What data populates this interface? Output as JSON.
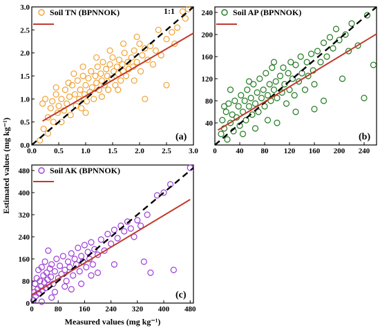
{
  "figure": {
    "ylabel": "Estimated values  (mg kg⁻¹)",
    "xlabel": "Measured values  (mg kg⁻¹)"
  },
  "colors": {
    "one_to_one": "#000000",
    "fit": "#c0392b",
    "tn": "#f0a030",
    "ap": "#1f7a1f",
    "ak": "#9b3dd6"
  },
  "chart_data": [
    {
      "type": "scatter",
      "panel_label": "(a)",
      "legend_points": "Soil TN (BPNNOK)",
      "one_to_one_label": "1:1",
      "xlim": [
        0,
        3.0
      ],
      "ylim": [
        0,
        3.0
      ],
      "xticks": [
        "0.0",
        "0.5",
        "1.0",
        "1.5",
        "2.0",
        "2.5",
        "3.0"
      ],
      "yticks": [
        "0.0",
        "0.5",
        "1.0",
        "1.5",
        "2.0",
        "2.5",
        "3.0"
      ],
      "fit_line": [
        [
          0.2,
          0.52
        ],
        [
          3.0,
          2.43
        ]
      ],
      "one_to_one_line": [
        [
          0,
          0
        ],
        [
          3.0,
          3.0
        ]
      ],
      "legend_position": "top-left",
      "points": [
        [
          0.15,
          0.1
        ],
        [
          0.2,
          0.9
        ],
        [
          0.22,
          0.35
        ],
        [
          0.25,
          1.0
        ],
        [
          0.3,
          0.6
        ],
        [
          0.35,
          0.8
        ],
        [
          0.38,
          0.95
        ],
        [
          0.4,
          0.5
        ],
        [
          0.45,
          1.1
        ],
        [
          0.48,
          0.7
        ],
        [
          0.5,
          0.85
        ],
        [
          0.55,
          1.0
        ],
        [
          0.6,
          0.75
        ],
        [
          0.62,
          1.2
        ],
        [
          0.65,
          0.9
        ],
        [
          0.7,
          1.05
        ],
        [
          0.72,
          0.65
        ],
        [
          0.75,
          1.3
        ],
        [
          0.8,
          1.1
        ],
        [
          0.82,
          0.85
        ],
        [
          0.85,
          1.4
        ],
        [
          0.88,
          1.0
        ],
        [
          0.9,
          1.2
        ],
        [
          0.92,
          0.8
        ],
        [
          0.95,
          1.5
        ],
        [
          0.98,
          1.1
        ],
        [
          1.0,
          1.3
        ],
        [
          1.02,
          0.95
        ],
        [
          1.05,
          1.45
        ],
        [
          1.08,
          1.15
        ],
        [
          1.1,
          1.6
        ],
        [
          1.12,
          1.25
        ],
        [
          1.15,
          1.0
        ],
        [
          1.18,
          1.5
        ],
        [
          1.2,
          1.35
        ],
        [
          1.22,
          1.7
        ],
        [
          1.25,
          1.2
        ],
        [
          1.28,
          1.55
        ],
        [
          1.3,
          1.4
        ],
        [
          1.32,
          1.8
        ],
        [
          1.35,
          1.3
        ],
        [
          1.38,
          1.65
        ],
        [
          1.4,
          1.5
        ],
        [
          1.42,
          1.2
        ],
        [
          1.45,
          1.75
        ],
        [
          1.48,
          1.45
        ],
        [
          1.5,
          1.9
        ],
        [
          1.52,
          1.6
        ],
        [
          1.55,
          1.3
        ],
        [
          1.58,
          1.7
        ],
        [
          1.6,
          1.55
        ],
        [
          1.62,
          1.85
        ],
        [
          1.65,
          1.4
        ],
        [
          1.68,
          1.75
        ],
        [
          1.7,
          1.6
        ],
        [
          1.72,
          2.0
        ],
        [
          1.75,
          1.5
        ],
        [
          1.78,
          1.8
        ],
        [
          1.8,
          1.65
        ],
        [
          1.85,
          1.9
        ],
        [
          1.88,
          1.7
        ],
        [
          1.9,
          2.05
        ],
        [
          1.95,
          1.8
        ],
        [
          2.0,
          2.2
        ],
        [
          2.02,
          1.6
        ],
        [
          2.05,
          1.95
        ],
        [
          2.1,
          2.1
        ],
        [
          2.15,
          1.85
        ],
        [
          2.2,
          2.15
        ],
        [
          2.3,
          2.05
        ],
        [
          2.4,
          1.95
        ],
        [
          2.5,
          2.3
        ],
        [
          2.6,
          2.45
        ],
        [
          2.65,
          2.2
        ],
        [
          2.7,
          2.55
        ],
        [
          2.8,
          2.9
        ],
        [
          2.85,
          2.75
        ],
        [
          2.9,
          2.95
        ],
        [
          2.5,
          1.3
        ],
        [
          2.1,
          1.0
        ],
        [
          0.3,
          0.25
        ],
        [
          0.55,
          0.5
        ],
        [
          0.78,
          1.55
        ],
        [
          1.0,
          0.7
        ],
        [
          1.3,
          1.05
        ],
        [
          1.6,
          1.2
        ],
        [
          1.9,
          1.4
        ],
        [
          2.25,
          1.75
        ],
        [
          0.45,
          1.25
        ],
        [
          0.68,
          1.35
        ],
        [
          0.95,
          1.7
        ],
        [
          1.2,
          1.9
        ],
        [
          1.45,
          2.05
        ],
        [
          1.7,
          2.2
        ],
        [
          1.95,
          2.35
        ],
        [
          2.35,
          2.5
        ]
      ]
    },
    {
      "type": "scatter",
      "panel_label": "(b)",
      "legend_points": "Soil AP (BPNNOK)",
      "xlim": [
        0,
        260
      ],
      "ylim": [
        0,
        250
      ],
      "xticks": [
        "0",
        "40",
        "80",
        "120",
        "160",
        "200",
        "240"
      ],
      "yticks": [
        "40",
        "80",
        "120",
        "160",
        "200",
        "240"
      ],
      "fit_line": [
        [
          5,
          27
        ],
        [
          260,
          201
        ]
      ],
      "one_to_one_line": [
        [
          0,
          0
        ],
        [
          260,
          260
        ]
      ],
      "legend_position": "top-left",
      "points": [
        [
          10,
          20
        ],
        [
          12,
          45
        ],
        [
          15,
          30
        ],
        [
          18,
          60
        ],
        [
          20,
          10
        ],
        [
          22,
          75
        ],
        [
          25,
          40
        ],
        [
          28,
          55
        ],
        [
          30,
          25
        ],
        [
          32,
          80
        ],
        [
          35,
          50
        ],
        [
          38,
          70
        ],
        [
          40,
          35
        ],
        [
          42,
          90
        ],
        [
          45,
          60
        ],
        [
          48,
          80
        ],
        [
          50,
          45
        ],
        [
          52,
          100
        ],
        [
          55,
          70
        ],
        [
          58,
          85
        ],
        [
          60,
          55
        ],
        [
          62,
          110
        ],
        [
          65,
          75
        ],
        [
          68,
          95
        ],
        [
          70,
          60
        ],
        [
          72,
          120
        ],
        [
          75,
          85
        ],
        [
          78,
          100
        ],
        [
          80,
          70
        ],
        [
          82,
          130
        ],
        [
          85,
          90
        ],
        [
          88,
          110
        ],
        [
          90,
          80
        ],
        [
          92,
          140
        ],
        [
          95,
          100
        ],
        [
          98,
          115
        ],
        [
          100,
          85
        ],
        [
          105,
          125
        ],
        [
          108,
          95
        ],
        [
          110,
          140
        ],
        [
          112,
          110
        ],
        [
          115,
          75
        ],
        [
          118,
          130
        ],
        [
          120,
          100
        ],
        [
          122,
          150
        ],
        [
          125,
          120
        ],
        [
          128,
          90
        ],
        [
          130,
          145
        ],
        [
          135,
          115
        ],
        [
          138,
          160
        ],
        [
          140,
          130
        ],
        [
          145,
          100
        ],
        [
          148,
          150
        ],
        [
          150,
          125
        ],
        [
          155,
          165
        ],
        [
          158,
          135
        ],
        [
          160,
          110
        ],
        [
          165,
          170
        ],
        [
          170,
          150
        ],
        [
          175,
          185
        ],
        [
          180,
          160
        ],
        [
          185,
          195
        ],
        [
          190,
          175
        ],
        [
          195,
          210
        ],
        [
          200,
          190
        ],
        [
          205,
          120
        ],
        [
          210,
          200
        ],
        [
          215,
          170
        ],
        [
          220,
          220
        ],
        [
          230,
          180
        ],
        [
          240,
          85
        ],
        [
          245,
          235
        ],
        [
          255,
          145
        ],
        [
          160,
          65
        ],
        [
          100,
          40
        ],
        [
          25,
          100
        ],
        [
          15,
          70
        ],
        [
          45,
          20
        ],
        [
          65,
          30
        ],
        [
          85,
          45
        ],
        [
          130,
          60
        ],
        [
          175,
          80
        ],
        [
          95,
          150
        ],
        [
          55,
          115
        ]
      ]
    },
    {
      "type": "scatter",
      "panel_label": "(c)",
      "legend_points": "Soil AK (BPNNOK)",
      "xlim": [
        0,
        490
      ],
      "ylim": [
        0,
        500
      ],
      "xticks": [
        "0",
        "80",
        "160",
        "240",
        "320",
        "400",
        "480"
      ],
      "yticks": [
        "0",
        "80",
        "160",
        "240",
        "320",
        "400",
        "480"
      ],
      "fit_line": [
        [
          0,
          30
        ],
        [
          480,
          375
        ]
      ],
      "one_to_one_line": [
        [
          0,
          0
        ],
        [
          490,
          490
        ]
      ],
      "legend_position": "top-left",
      "points": [
        [
          5,
          10
        ],
        [
          8,
          40
        ],
        [
          10,
          70
        ],
        [
          12,
          25
        ],
        [
          15,
          90
        ],
        [
          18,
          50
        ],
        [
          20,
          120
        ],
        [
          22,
          35
        ],
        [
          25,
          80
        ],
        [
          28,
          60
        ],
        [
          30,
          130
        ],
        [
          32,
          45
        ],
        [
          35,
          100
        ],
        [
          38,
          75
        ],
        [
          40,
          150
        ],
        [
          42,
          55
        ],
        [
          45,
          110
        ],
        [
          48,
          85
        ],
        [
          50,
          190
        ],
        [
          52,
          65
        ],
        [
          55,
          125
        ],
        [
          58,
          95
        ],
        [
          60,
          140
        ],
        [
          65,
          70
        ],
        [
          70,
          115
        ],
        [
          75,
          160
        ],
        [
          80,
          90
        ],
        [
          85,
          135
        ],
        [
          90,
          105
        ],
        [
          95,
          170
        ],
        [
          100,
          120
        ],
        [
          105,
          80
        ],
        [
          110,
          150
        ],
        [
          115,
          130
        ],
        [
          120,
          180
        ],
        [
          125,
          100
        ],
        [
          130,
          160
        ],
        [
          135,
          140
        ],
        [
          140,
          200
        ],
        [
          145,
          115
        ],
        [
          150,
          170
        ],
        [
          155,
          150
        ],
        [
          160,
          210
        ],
        [
          165,
          130
        ],
        [
          170,
          185
        ],
        [
          175,
          160
        ],
        [
          180,
          220
        ],
        [
          185,
          140
        ],
        [
          190,
          195
        ],
        [
          200,
          175
        ],
        [
          210,
          230
        ],
        [
          220,
          190
        ],
        [
          230,
          250
        ],
        [
          240,
          215
        ],
        [
          250,
          265
        ],
        [
          260,
          235
        ],
        [
          270,
          280
        ],
        [
          280,
          260
        ],
        [
          290,
          295
        ],
        [
          300,
          270
        ],
        [
          310,
          240
        ],
        [
          320,
          300
        ],
        [
          330,
          280
        ],
        [
          340,
          150
        ],
        [
          350,
          320
        ],
        [
          360,
          110
        ],
        [
          380,
          390
        ],
        [
          400,
          400
        ],
        [
          420,
          430
        ],
        [
          430,
          120
        ],
        [
          480,
          490
        ],
        [
          60,
          20
        ],
        [
          120,
          50
        ],
        [
          200,
          110
        ],
        [
          250,
          140
        ],
        [
          30,
          5
        ],
        [
          150,
          70
        ],
        [
          180,
          100
        ],
        [
          100,
          60
        ],
        [
          70,
          40
        ]
      ]
    }
  ]
}
